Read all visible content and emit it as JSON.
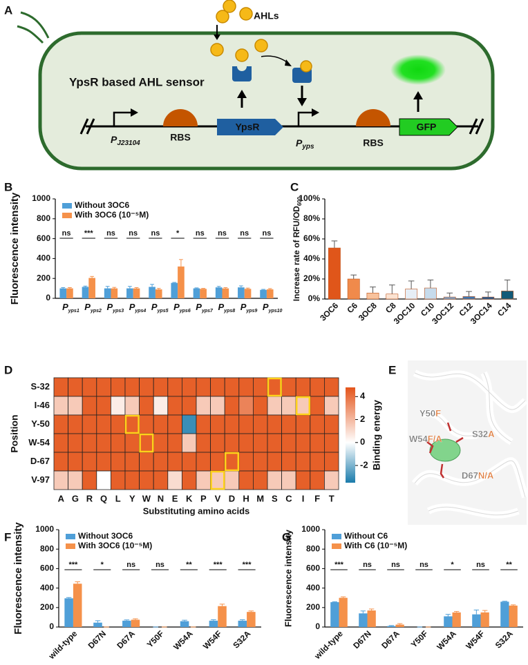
{
  "panel_labels": [
    "A",
    "B",
    "C",
    "D",
    "E",
    "F",
    "G"
  ],
  "diagram": {
    "signal": "AHLs",
    "title": "YpsR based AHL sensor",
    "promoter1": {
      "main": "P",
      "sub": "J23104"
    },
    "rbs1": "RBS",
    "gene1": "YpsR",
    "promoter2": {
      "main": "P",
      "sub": "yps"
    },
    "rbs2": "RBS",
    "reporter": "GFP"
  },
  "structure": {
    "labels": [
      {
        "base": "Y50",
        "mut": "F"
      },
      {
        "base": "W54",
        "mut": "F/A"
      },
      {
        "base": "S32",
        "mut": "A"
      },
      {
        "base": "D67",
        "mut": "N/A"
      }
    ]
  },
  "chart_data": [
    {
      "type": "grouped_bar",
      "y_label": "Fluorescence intensity",
      "category_prefix": "P",
      "categories": [
        "yps1",
        "yps2",
        "yps3",
        "yps4",
        "yps5",
        "yps6",
        "yps7",
        "yps8",
        "yps9",
        "yps10"
      ],
      "series": [
        {
          "name": "Without 3OC6",
          "color": "#4f9fd8",
          "values": [
            100,
            115,
            100,
            100,
            115,
            155,
            100,
            110,
            110,
            85
          ],
          "errors": [
            8,
            8,
            20,
            20,
            25,
            5,
            5,
            10,
            15,
            5
          ]
        },
        {
          "name": "With 3OC6 (10⁻⁵M)",
          "color": "#f5914a",
          "values": [
            100,
            205,
            100,
            100,
            90,
            320,
            95,
            100,
            95,
            90
          ],
          "errors": [
            8,
            15,
            10,
            8,
            10,
            70,
            5,
            8,
            8,
            8
          ]
        }
      ],
      "significance": [
        "ns",
        "***",
        "ns",
        "ns",
        "ns",
        "*",
        "ns",
        "ns",
        "ns",
        "ns"
      ],
      "ylim": [
        0,
        1000
      ],
      "yticks": [
        0,
        200,
        400,
        600,
        800,
        1000
      ]
    },
    {
      "type": "bar",
      "y_label": "Increase rate of RFU/OD",
      "y_label_sub": "600",
      "categories": [
        "3OC6",
        "C6",
        "3OC8",
        "C8",
        "3OC10",
        "C10",
        "3OC12",
        "C12",
        "3OC14",
        "C14"
      ],
      "values": [
        51,
        20,
        6,
        5,
        10,
        11,
        2,
        2.5,
        2,
        8
      ],
      "errors": [
        7,
        4,
        6,
        9,
        8,
        8,
        4,
        5,
        5,
        11
      ],
      "colors": [
        "#e0561a",
        "#f08a4b",
        "#f8c29c",
        "#fbe3d2",
        "#e6eef6",
        "#c6dbec",
        "#7ba7d0",
        "#3e79b3",
        "#1b5a96",
        "#125a78"
      ],
      "ylim": [
        0,
        100
      ],
      "yticks": [
        {
          "value": 0,
          "label": "0%"
        },
        {
          "value": 20,
          "label": "20%"
        },
        {
          "value": 40,
          "label": "40%"
        },
        {
          "value": 60,
          "label": "60%"
        },
        {
          "value": 80,
          "label": "80%"
        },
        {
          "value": 100,
          "label": "100%"
        }
      ]
    },
    {
      "type": "heatmap",
      "x_label": "Substituting amino acids",
      "y_label": "Position",
      "colorbar_label": "Binding energy",
      "rows": [
        "S-32",
        "I-46",
        "Y-50",
        "W-54",
        "D-67",
        "V-97"
      ],
      "columns": [
        "A",
        "G",
        "R",
        "Q",
        "L",
        "Y",
        "W",
        "N",
        "E",
        "K",
        "P",
        "V",
        "D",
        "H",
        "M",
        "S",
        "C",
        "I",
        "F",
        "T"
      ],
      "values": [
        [
          4.5,
          4.5,
          4.5,
          4.5,
          4.5,
          4.5,
          4.5,
          4.5,
          4.5,
          4.5,
          4.5,
          4.5,
          4.5,
          4.5,
          4.5,
          4.5,
          4.5,
          4.5,
          4.5,
          4.5
        ],
        [
          1.5,
          1.5,
          4.5,
          4.5,
          0.5,
          1.5,
          4.5,
          0.5,
          4.5,
          4.5,
          1.5,
          1.5,
          4.5,
          3.5,
          4.5,
          1.5,
          1.5,
          1.5,
          4.5,
          1.5
        ],
        [
          4.5,
          4.5,
          4.5,
          4.5,
          4.5,
          4.5,
          4.5,
          4.5,
          4.5,
          -3,
          4.5,
          4.5,
          4.5,
          4.5,
          4.5,
          4.5,
          4.5,
          4.5,
          4.5,
          4.5
        ],
        [
          4.5,
          4.5,
          4.5,
          4.5,
          4.5,
          4.5,
          4.5,
          4.5,
          4.5,
          1.5,
          4.5,
          4.5,
          4.5,
          4.5,
          4.5,
          4.5,
          4.5,
          4.5,
          4.5,
          4.5
        ],
        [
          4.5,
          4.5,
          4.5,
          4.5,
          4.5,
          4.5,
          4.5,
          4.5,
          4.5,
          4.5,
          4.5,
          4.5,
          4.5,
          4.5,
          4.5,
          4.5,
          4.5,
          4.5,
          4.5,
          4.5
        ],
        [
          1.5,
          1.5,
          4.5,
          0,
          4.5,
          4.5,
          4.5,
          4.5,
          1,
          4.5,
          1.5,
          1.5,
          1.5,
          4.5,
          4.5,
          1.5,
          1.5,
          4.5,
          4.5,
          1.5
        ]
      ],
      "highlights": [
        {
          "row": "S-32",
          "column": "S"
        },
        {
          "row": "I-46",
          "column": "I"
        },
        {
          "row": "Y-50",
          "column": "Y"
        },
        {
          "row": "W-54",
          "column": "W"
        },
        {
          "row": "D-67",
          "column": "D"
        },
        {
          "row": "V-97",
          "column": "V"
        }
      ],
      "colormap": [
        "#1a7bab",
        "#ffffff",
        "#e4551b"
      ],
      "clim": [
        -3.5,
        4.8
      ],
      "cticks": [
        -2,
        0,
        2,
        4
      ]
    },
    {
      "type": "grouped_bar",
      "y_label": "Fluorescence intensity",
      "rotate_labels": true,
      "categories": [
        "wild-type",
        "D67N",
        "D67A",
        "Y50F",
        "W54A",
        "W54F",
        "S32A"
      ],
      "series": [
        {
          "name": "Without 3OC6",
          "color": "#4f9fd8",
          "values": [
            295,
            45,
            65,
            0,
            60,
            65,
            65
          ],
          "errors": [
            8,
            20,
            8,
            0,
            10,
            10,
            10
          ]
        },
        {
          "name": "With 3OC6 (10⁻⁵M)",
          "color": "#f5914a",
          "values": [
            445,
            0,
            75,
            0,
            0,
            215,
            155
          ],
          "errors": [
            20,
            0,
            10,
            0,
            0,
            20,
            10
          ]
        }
      ],
      "significance": [
        "***",
        "*",
        "ns",
        "ns",
        "**",
        "***",
        "***"
      ],
      "ylim": [
        0,
        1000
      ],
      "yticks": [
        0,
        200,
        400,
        600,
        800,
        1000
      ]
    },
    {
      "type": "grouped_bar",
      "y_label": "Fluorescence intensity",
      "rotate_labels": true,
      "categories": [
        "wild-type",
        "D67N",
        "D67A",
        "Y50F",
        "W54A",
        "W54F",
        "S32A"
      ],
      "series": [
        {
          "name": "Without C6",
          "color": "#4f9fd8",
          "values": [
            255,
            140,
            10,
            0,
            110,
            130,
            260
          ],
          "errors": [
            5,
            25,
            5,
            0,
            20,
            45,
            5
          ]
        },
        {
          "name": "With C6 (10⁻⁵M)",
          "color": "#f5914a",
          "values": [
            300,
            170,
            25,
            0,
            150,
            150,
            220
          ],
          "errors": [
            10,
            15,
            10,
            0,
            10,
            20,
            8
          ]
        }
      ],
      "significance": [
        "***",
        "ns",
        "ns",
        "ns",
        "*",
        "ns",
        "**"
      ],
      "ylim": [
        0,
        1000
      ],
      "yticks": [
        0,
        200,
        400,
        600,
        800,
        1000
      ]
    }
  ]
}
